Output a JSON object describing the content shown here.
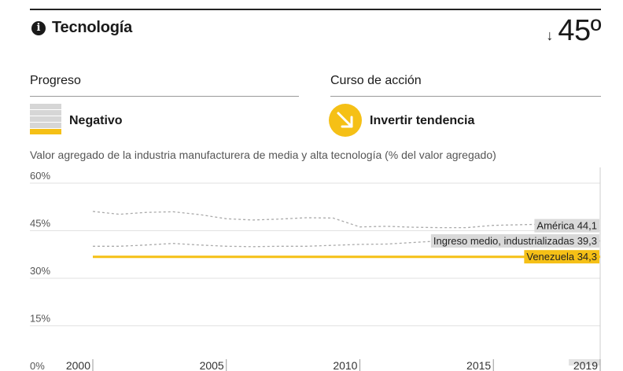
{
  "header": {
    "info_icon": "info-icon",
    "title": "Tecnología",
    "rank_arrow": "↓",
    "rank": "45º"
  },
  "progress": {
    "label": "Progreso",
    "status": "Negativo",
    "icon": "progress-bars-icon",
    "filled_bars": 1,
    "total_bars": 5
  },
  "action": {
    "label": "Curso de acción",
    "status": "Invertir tendencia",
    "icon": "reverse-trend-arrow-icon",
    "color": "#f5c016"
  },
  "colors": {
    "accent": "#f5c016",
    "comparison": "#aaaaaa",
    "comparison_label_bg": "#d9d9d9"
  },
  "chart_data": {
    "type": "line",
    "title": "Valor agregado de la industria manufacturera de media y alta tecnología (% del valor agregado)",
    "ylim": [
      0,
      60
    ],
    "y_ticks": [
      "0%",
      "15%",
      "30%",
      "45%",
      "60%"
    ],
    "y_tick_values": [
      0,
      15,
      30,
      45,
      60
    ],
    "xlim": [
      2000,
      2019
    ],
    "x_ticks": [
      "2000",
      "2005",
      "2010",
      "2015",
      "2019"
    ],
    "x_tick_values": [
      2000,
      2005,
      2010,
      2015,
      2019
    ],
    "grid": true,
    "series": [
      {
        "name": "América",
        "label": "América 44,1",
        "style": "dashed",
        "x": [
          2000,
          2001,
          2002,
          2003,
          2004,
          2005,
          2006,
          2007,
          2008,
          2009,
          2010,
          2011,
          2012,
          2013,
          2014,
          2015,
          2016,
          2017,
          2018,
          2019
        ],
        "values": [
          48.6,
          47.7,
          48.3,
          48.5,
          47.6,
          46.3,
          45.9,
          46.2,
          46.6,
          46.5,
          43.7,
          43.9,
          43.6,
          43.5,
          43.5,
          44.2,
          44.4,
          44.6,
          44.2,
          44.1
        ]
      },
      {
        "name": "Ingreso medio, industrializadas",
        "label": "Ingreso medio, industrializadas 39,3",
        "style": "dashed",
        "x": [
          2000,
          2001,
          2002,
          2003,
          2004,
          2005,
          2006,
          2007,
          2008,
          2009,
          2010,
          2011,
          2012,
          2013,
          2014,
          2015,
          2016,
          2017,
          2018,
          2019
        ],
        "values": [
          37.6,
          37.6,
          38.0,
          38.5,
          38.0,
          37.6,
          37.5,
          37.6,
          37.6,
          37.9,
          38.2,
          38.3,
          38.8,
          39.3,
          39.4,
          39.3,
          39.3,
          39.3,
          39.3,
          39.3
        ]
      },
      {
        "name": "Venezuela",
        "label": "Venezuela 34,3",
        "style": "solid",
        "color": "#f5c016",
        "x": [
          2000,
          2001,
          2002,
          2003,
          2004,
          2005,
          2006,
          2007,
          2008,
          2009,
          2010,
          2011,
          2012,
          2013,
          2014,
          2015,
          2016,
          2017,
          2018,
          2019
        ],
        "values": [
          34.3,
          34.3,
          34.3,
          34.3,
          34.3,
          34.3,
          34.3,
          34.3,
          34.3,
          34.3,
          34.3,
          34.3,
          34.3,
          34.3,
          34.3,
          34.3,
          34.3,
          34.3,
          34.3,
          34.3
        ]
      }
    ]
  }
}
